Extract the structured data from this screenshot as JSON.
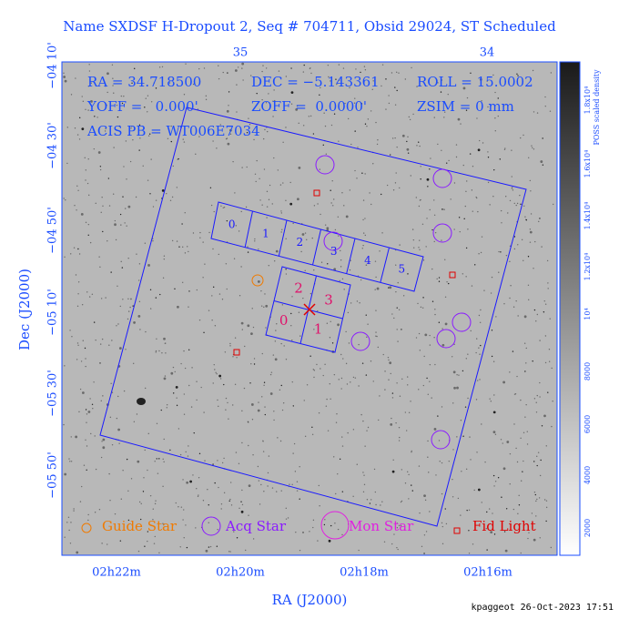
{
  "title": "Name SXDSF H-Dropout 2, Seq # 704711, Obsid 29024, ST Scheduled",
  "info": {
    "ra": "RA = 34.718500",
    "dec": "DEC = −5.143361",
    "roll": "ROLL = 15.0002",
    "yoff": "YOFF =   0.000'",
    "zoff": "ZOFF =  0.0000'",
    "zsim": "ZSIM = 0 mm",
    "acis": "ACIS PB = WT006E7034"
  },
  "axes": {
    "top_ticks": [
      "35",
      "34"
    ],
    "left_ticks": [
      "−04 10'",
      "−04 30'",
      "−04 50'",
      "−05 10'",
      "−05 30'",
      "−05 50'"
    ],
    "left_label": "Dec (J2000)",
    "bottom_ticks": [
      "02h22m",
      "02h20m",
      "02h18m",
      "02h16m"
    ],
    "bottom_label": "RA (J2000)"
  },
  "colorbar": {
    "ticks": [
      "2000",
      "4000",
      "6000",
      "8000",
      "10⁴",
      "1.2x10⁴",
      "1.4x10⁴",
      "1.6x10⁴",
      "1.8x10⁴"
    ],
    "label": "POSS scaled density"
  },
  "chips": {
    "s_array": [
      "0",
      "1",
      "2",
      "3",
      "4",
      "5"
    ],
    "i_array": [
      "0",
      "1",
      "2",
      "3"
    ]
  },
  "legend": [
    "Guide Star",
    "Acq Star",
    "Mon Star",
    "Fid Light"
  ],
  "footer": "kpaggeot 26-Oct-2023 17:51"
}
